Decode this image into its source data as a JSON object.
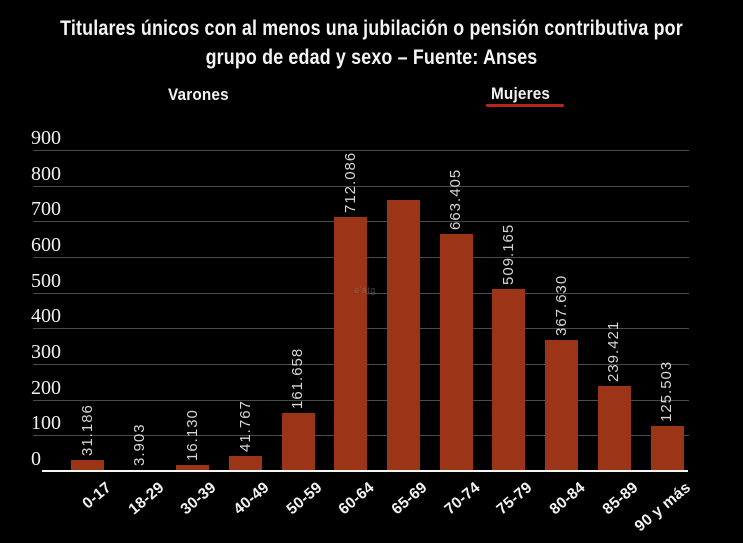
{
  "page": {
    "background_color": "#000000",
    "text_color": "#f4f4f4"
  },
  "header": {
    "title_line1": "Titulares únicos  con al menos una jubilación o pensión contributiva por",
    "title_line2": "grupo de edad y sexo – Fuente: Anses"
  },
  "legend": {
    "varones_label": "Varones",
    "mujeres_label": "Mujeres",
    "mujeres_underline_color": "#b6251a"
  },
  "watermark_text": "e'atg",
  "chart_data": {
    "type": "bar",
    "title": "Titulares únicos con al menos una jubilación o pensión contributiva por grupo de edad y sexo – Fuente: Anses",
    "series_name": "Mujeres",
    "categories": [
      "0-17",
      "18-29",
      "30-39",
      "40-49",
      "50-59",
      "60-64",
      "65-69",
      "70-74",
      "75-79",
      "80-84",
      "85-89",
      "90 y más"
    ],
    "values": [
      31.186,
      3.903,
      16.13,
      41.767,
      161.658,
      712.086,
      760,
      663.405,
      509.165,
      367.63,
      239.421,
      125.503
    ],
    "bar_labels": [
      "31.186",
      "3.903",
      "16.130",
      "41.767",
      "161.658",
      "712.086",
      "",
      "663.405",
      "509.165",
      "367.630",
      "239.421",
      "125.503"
    ],
    "unlabeled_bars": {
      "65-69": "no printed value label; bar height read from gridlines ≈ 760"
    },
    "ylim": [
      0,
      900
    ],
    "yticks": [
      0,
      100,
      200,
      300,
      400,
      500,
      600,
      700,
      800,
      900
    ],
    "xlabel": "",
    "ylabel": "",
    "grid": "horizontal",
    "legend_position": "top",
    "bar_color": "#9c3518",
    "gridline_color": "#4b4b4b",
    "axis_color": "#f6f6f6",
    "value_label_color": "#d6d6d6"
  }
}
